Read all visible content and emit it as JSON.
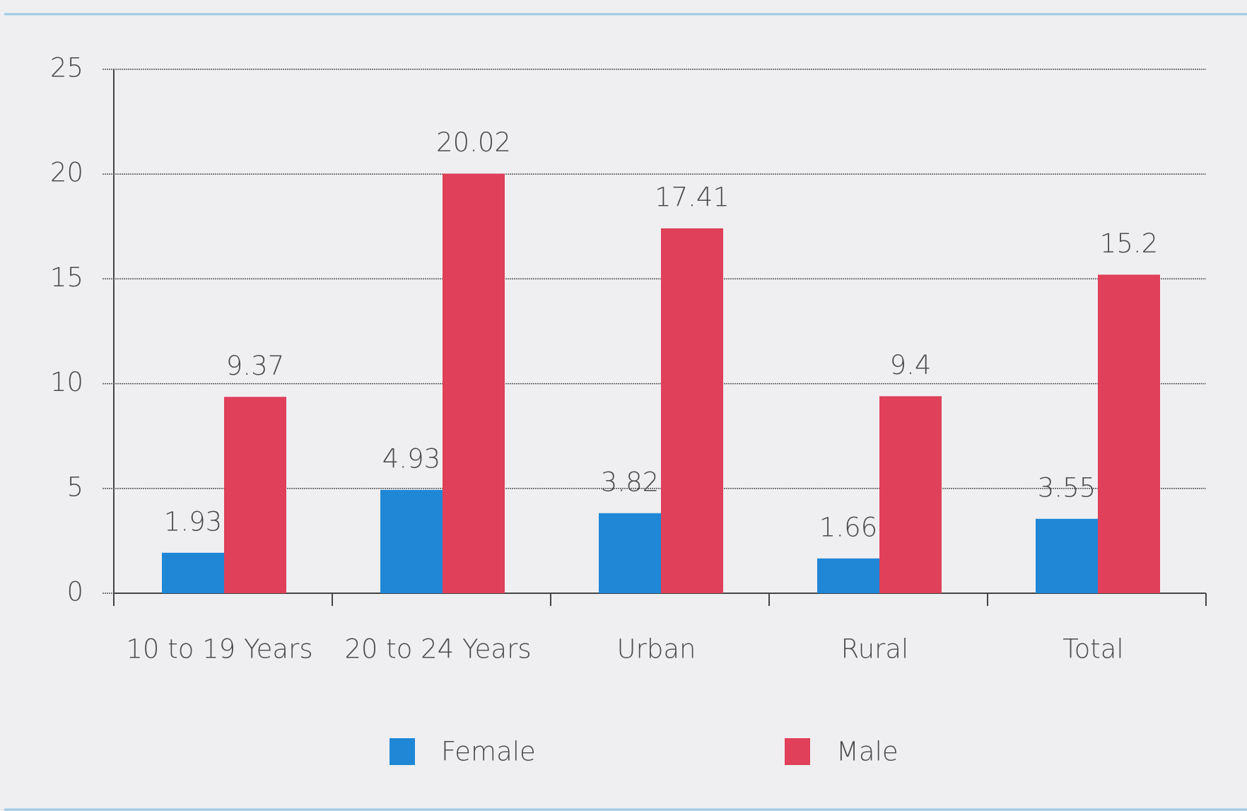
{
  "chart_data": {
    "type": "bar",
    "categories": [
      "10 to 19 Years",
      "20 to 24 Years",
      "Urban",
      "Rural",
      "Total"
    ],
    "series": [
      {
        "name": "Female",
        "color": "#1f87d6",
        "values": [
          1.93,
          4.93,
          3.82,
          1.66,
          3.55
        ]
      },
      {
        "name": "Male",
        "color": "#e0405a",
        "values": [
          9.37,
          20.02,
          17.41,
          9.4,
          15.2
        ]
      }
    ],
    "ylim": [
      0,
      25
    ],
    "yticks": [
      0,
      5,
      10,
      15,
      20,
      25
    ],
    "grid": true,
    "legend": "bottom"
  }
}
